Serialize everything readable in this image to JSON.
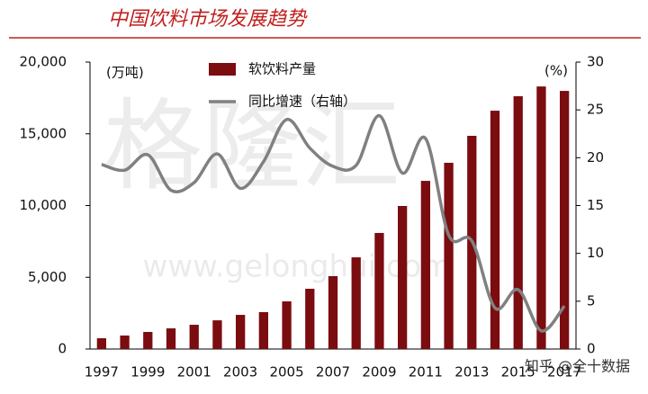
{
  "chart_data": {
    "type": "bar_line",
    "title": "中国饮料市场发展趋势",
    "y_label": "(万吨)",
    "y2_label": "(%)",
    "categories": [
      "1997",
      null,
      "1999",
      null,
      "2001",
      null,
      "2003",
      null,
      "2005",
      null,
      "2007",
      null,
      "2009",
      null,
      "2011",
      null,
      "2013",
      null,
      "2015",
      null,
      "2017"
    ],
    "series": [
      {
        "name": "软饮料产量",
        "type": "bar",
        "color": "#7b0c10",
        "values": [
          750,
          940,
          1190,
          1440,
          1690,
          2000,
          2380,
          2570,
          3320,
          4200,
          5080,
          6390,
          8090,
          9970,
          11720,
          12980,
          14860,
          16610,
          17620,
          18300,
          17990
        ]
      },
      {
        "name": "同比增速（右轴）",
        "type": "line",
        "axis": "y2",
        "color": "#808080",
        "values": [
          19.3,
          18.7,
          20.3,
          16.6,
          17.4,
          20.4,
          16.8,
          19.6,
          24.0,
          21.0,
          19.1,
          19.2,
          24.4,
          18.4,
          22.0,
          11.9,
          11.3,
          4.3,
          6.2,
          1.9,
          4.5
        ]
      }
    ],
    "ylim": [
      0,
      20000
    ],
    "yticks": [
      0,
      {
        "value": 5000,
        "label": "5,000"
      },
      {
        "value": 10000,
        "label": "10,000"
      },
      {
        "value": 15000,
        "label": "15,000"
      },
      {
        "value": 20000,
        "label": "20,000"
      }
    ],
    "y2lim": [
      0,
      30
    ],
    "y2ticks": [
      0,
      5,
      10,
      15,
      20,
      25,
      30
    ],
    "legend": "top",
    "annotations": [
      "格隆汇",
      "www.gelonghui.com",
      "知乎 @全十数据"
    ]
  }
}
